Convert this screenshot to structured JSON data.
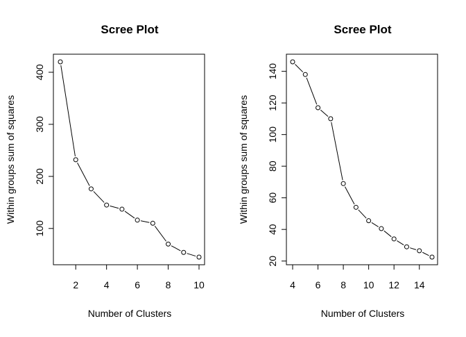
{
  "chart_data": [
    {
      "type": "line",
      "title": "Scree Plot",
      "xlabel": "Number of Clusters",
      "ylabel": "Within groups sum of squares",
      "x": [
        1,
        2,
        3,
        4,
        5,
        6,
        7,
        8,
        9,
        10
      ],
      "series": [
        {
          "values": [
            420,
            232,
            176,
            145,
            137,
            116,
            110,
            70,
            54,
            45
          ]
        }
      ],
      "xlim": [
        1,
        10
      ],
      "ylim": [
        45,
        420
      ],
      "xticks": [
        2,
        4,
        6,
        8,
        10
      ],
      "yticks": [
        100,
        200,
        300,
        400
      ],
      "grid": false,
      "line_style": "overplotted points and lines",
      "marker": "open-circle",
      "color": "#000000"
    },
    {
      "type": "line",
      "title": "Scree Plot",
      "xlabel": "Number of Clusters",
      "ylabel": "Within groups sum of squares",
      "x": [
        4,
        5,
        6,
        7,
        8,
        9,
        10,
        11,
        12,
        13,
        14,
        15
      ],
      "series": [
        {
          "values": [
            146,
            138,
            117,
            110,
            69,
            54,
            45.5,
            40.5,
            34,
            29,
            26.5,
            22.5
          ]
        }
      ],
      "xlim": [
        4,
        15
      ],
      "ylim": [
        22.5,
        146
      ],
      "xticks": [
        4,
        6,
        8,
        10,
        12,
        14
      ],
      "yticks": [
        20,
        40,
        60,
        80,
        100,
        120,
        140
      ],
      "grid": false,
      "line_style": "overplotted points and lines",
      "marker": "open-circle",
      "color": "#000000"
    }
  ]
}
